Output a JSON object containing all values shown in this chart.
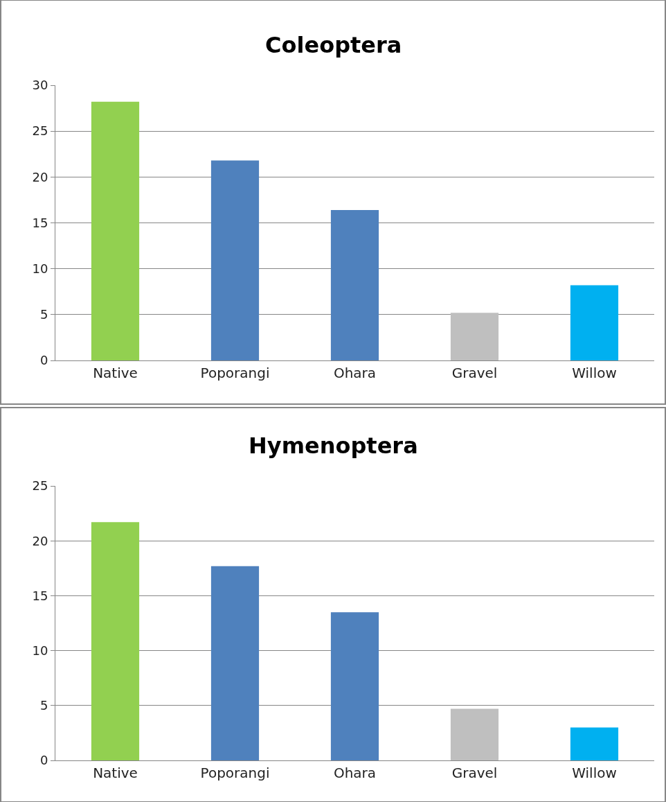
{
  "chart_data": [
    {
      "type": "bar",
      "title": "Coleoptera",
      "categories": [
        "Native",
        "Poporangi",
        "Ohara",
        "Gravel",
        "Willow"
      ],
      "values": [
        28.2,
        21.8,
        16.4,
        5.2,
        8.2
      ],
      "colors": [
        "#92d050",
        "#4f81bd",
        "#4f81bd",
        "#bfbfbf",
        "#00b0f0"
      ],
      "ylim": [
        0,
        30
      ],
      "yticks": [
        0,
        5,
        10,
        15,
        20,
        25,
        30
      ],
      "grid": "y"
    },
    {
      "type": "bar",
      "title": "Hymenoptera",
      "categories": [
        "Native",
        "Poporangi",
        "Ohara",
        "Gravel",
        "Willow"
      ],
      "values": [
        21.7,
        17.7,
        13.5,
        4.7,
        3.0
      ],
      "colors": [
        "#92d050",
        "#4f81bd",
        "#4f81bd",
        "#bfbfbf",
        "#00b0f0"
      ],
      "ylim": [
        0,
        25
      ],
      "yticks": [
        0,
        5,
        10,
        15,
        20,
        25
      ],
      "grid": "y"
    }
  ]
}
